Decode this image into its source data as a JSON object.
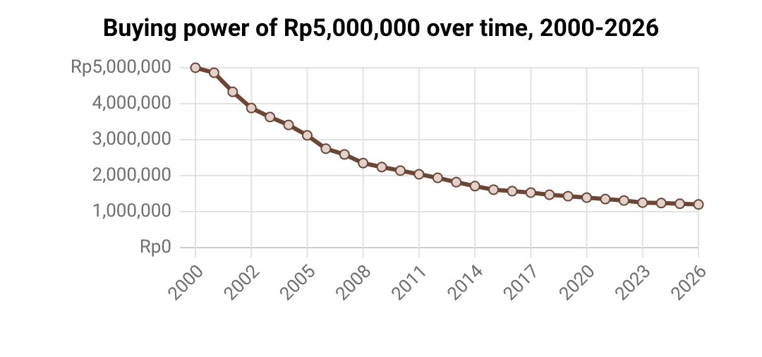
{
  "chart_data": {
    "type": "line",
    "title": "Buying power of Rp5,000,000 over time, 2000-2026",
    "categories": [
      "2000",
      null,
      null,
      "2002",
      null,
      null,
      "2005",
      null,
      null,
      "2008",
      null,
      null,
      "2011",
      null,
      null,
      "2014",
      null,
      null,
      "2017",
      null,
      null,
      "2020",
      null,
      null,
      "2023",
      null,
      null,
      "2026"
    ],
    "values": [
      5000000,
      4860000,
      4330000,
      3880000,
      3630000,
      3410000,
      3120000,
      2750000,
      2590000,
      2350000,
      2240000,
      2140000,
      2040000,
      1940000,
      1820000,
      1710000,
      1610000,
      1570000,
      1530000,
      1470000,
      1430000,
      1390000,
      1350000,
      1310000,
      1250000,
      1240000,
      1220000,
      1200000
    ],
    "color": "#6b4535",
    "ylim": [
      0,
      5000000
    ],
    "yticks": [
      {
        "value": 0,
        "label": "Rp0"
      },
      {
        "value": 1000000,
        "label": "1,000,000"
      },
      {
        "value": 2000000,
        "label": "2,000,000"
      },
      {
        "value": 3000000,
        "label": "3,000,000"
      },
      {
        "value": 4000000,
        "label": "4,000,000"
      },
      {
        "value": 5000000,
        "label": "Rp5,000,000"
      }
    ],
    "grid": true
  }
}
